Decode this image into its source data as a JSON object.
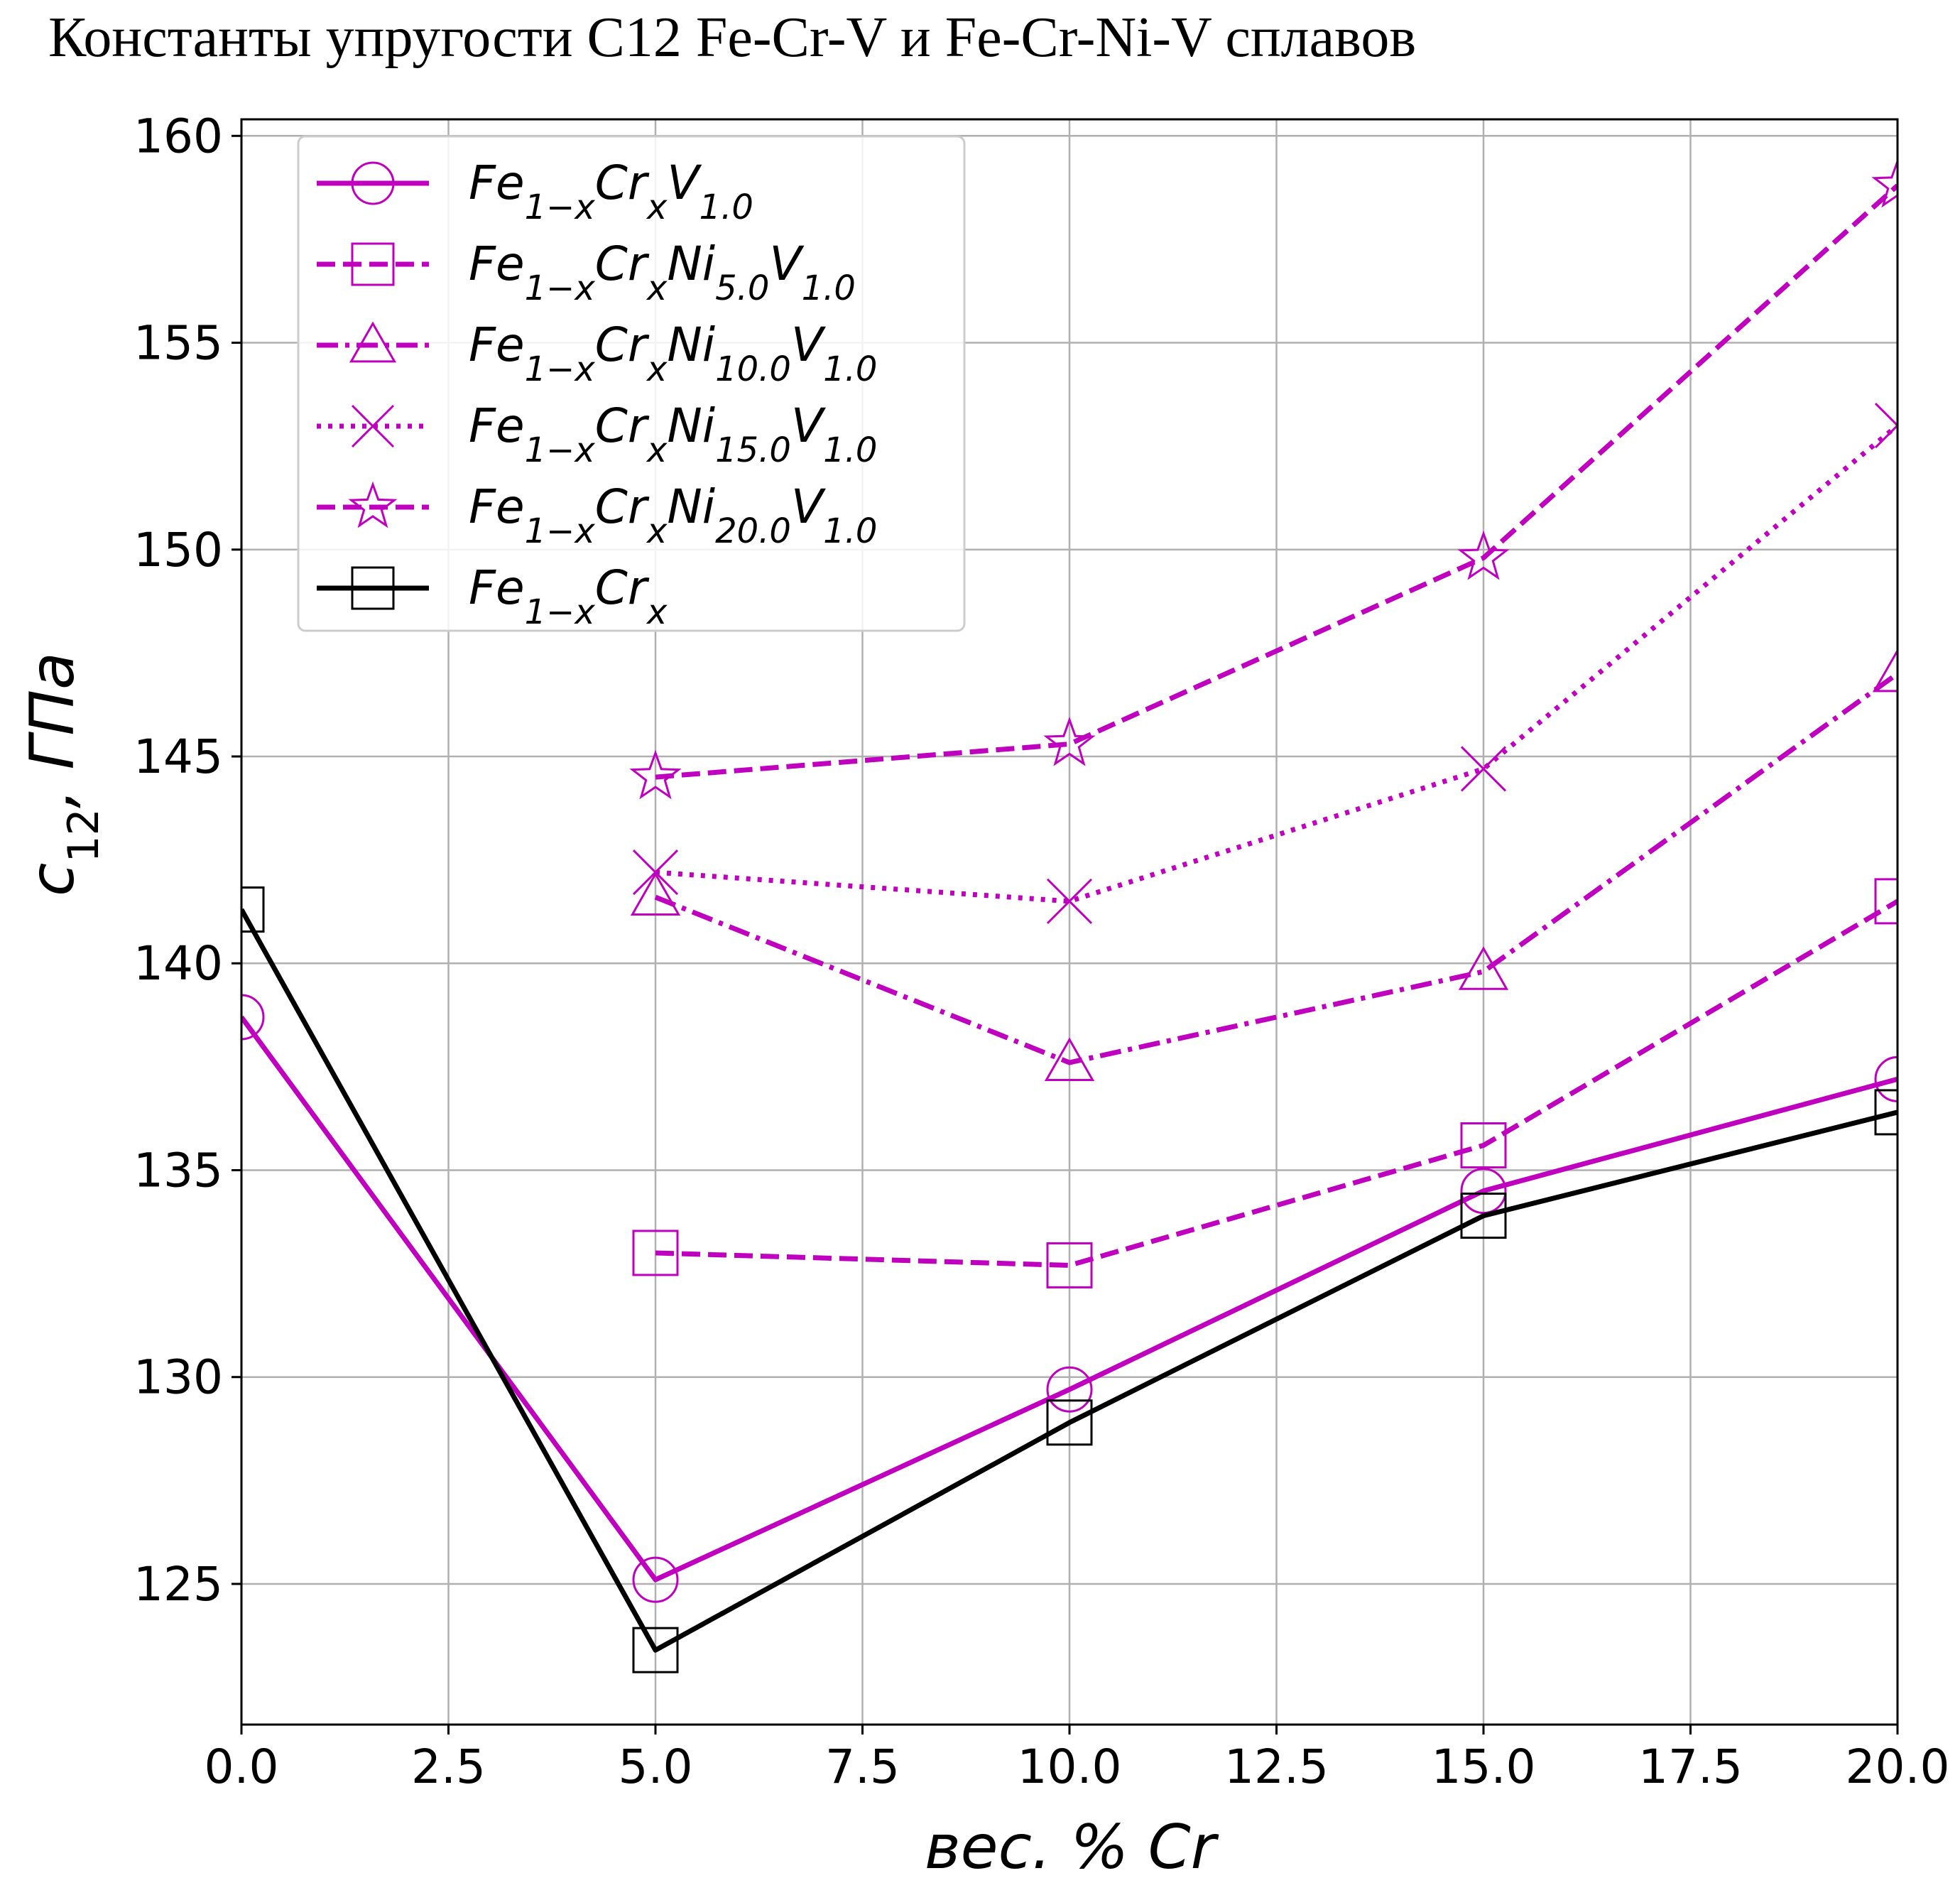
{
  "chart_data": {
    "type": "line",
    "title": "Константы упругости С12 Fe-Cr-V и Fe-Cr-Ni-V сплавов",
    "xlabel": "вес. % Cr",
    "ylabel": "c12, ГПа",
    "xlim": [
      0,
      20
    ],
    "ylim": [
      121.6,
      160.4
    ],
    "xticks": [
      "0.0",
      "2.5",
      "5.0",
      "7.5",
      "10.0",
      "12.5",
      "15.0",
      "17.5",
      "20.0"
    ],
    "yticks": [
      "125",
      "130",
      "135",
      "140",
      "145",
      "150",
      "155",
      "160"
    ],
    "grid": true,
    "legend_position": "upper-left",
    "series": [
      {
        "name": "Fe1−xCrxV1.0",
        "color": "#bf00bf",
        "line_style": "solid",
        "marker": "circle",
        "x": [
          0,
          5,
          10,
          15,
          20
        ],
        "values": [
          138.7,
          125.1,
          129.7,
          134.5,
          137.2
        ]
      },
      {
        "name": "Fe1−xCrxNi5.0V1.0",
        "color": "#bf00bf",
        "line_style": "dashed",
        "marker": "square",
        "x": [
          5,
          10,
          15,
          20
        ],
        "values": [
          133.0,
          132.7,
          135.6,
          141.5
        ]
      },
      {
        "name": "Fe1−xCrxNi10.0V1.0",
        "color": "#bf00bf",
        "line_style": "dashdot",
        "marker": "triangle",
        "x": [
          5,
          10,
          15,
          20
        ],
        "values": [
          141.6,
          137.6,
          139.8,
          147.0
        ]
      },
      {
        "name": "Fe1−xCrxNi15.0V1.0",
        "color": "#bf00bf",
        "line_style": "dotted",
        "marker": "x",
        "x": [
          5,
          10,
          15,
          20
        ],
        "values": [
          142.2,
          141.5,
          144.7,
          153.0
        ]
      },
      {
        "name": "Fe1−xCrxNi20.0V1.0",
        "color": "#bf00bf",
        "line_style": "dashed",
        "marker": "star",
        "x": [
          5,
          10,
          15,
          20
        ],
        "values": [
          144.5,
          145.3,
          149.8,
          158.8
        ]
      },
      {
        "name": "Fe1−xCrx",
        "color": "#000000",
        "line_style": "solid",
        "marker": "square",
        "x": [
          0,
          5,
          10,
          15,
          20
        ],
        "values": [
          141.3,
          123.4,
          128.9,
          133.9,
          136.4
        ]
      }
    ]
  }
}
